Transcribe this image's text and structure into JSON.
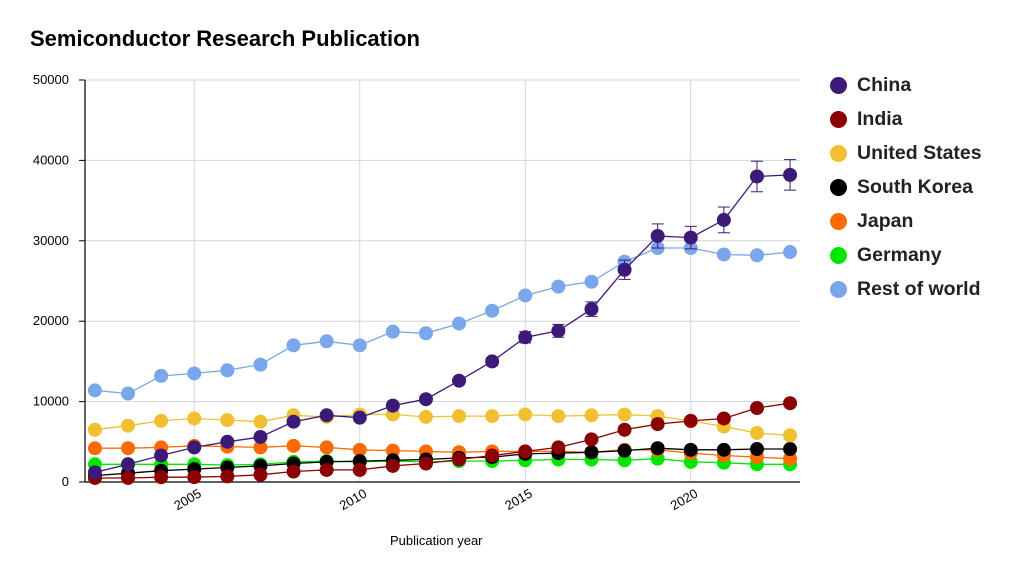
{
  "chart_data": {
    "type": "line",
    "title": "Semiconductor Research Publication",
    "xlabel": "Publication year",
    "ylabel": "",
    "xlim": [
      2001.7,
      2023.3
    ],
    "ylim": [
      0,
      50000
    ],
    "x": [
      2002,
      2003,
      2004,
      2005,
      2006,
      2007,
      2008,
      2009,
      2010,
      2011,
      2012,
      2013,
      2014,
      2015,
      2016,
      2017,
      2018,
      2019,
      2020,
      2021,
      2022,
      2023
    ],
    "x_ticks": [
      2005,
      2010,
      2015,
      2020
    ],
    "y_ticks": [
      0,
      10000,
      20000,
      30000,
      40000,
      50000
    ],
    "grid": true,
    "legend_position": "right",
    "series": [
      {
        "name": "China",
        "color": "#3d1a78",
        "values": [
          1200,
          2200,
          3300,
          4300,
          5000,
          5600,
          7500,
          8300,
          8000,
          9500,
          10300,
          12600,
          15000,
          18000,
          18800,
          21500,
          26400,
          30600,
          30400,
          32600,
          38000,
          38200
        ],
        "errors": [
          0,
          0,
          0,
          0,
          0,
          0,
          0,
          0,
          0,
          0,
          0,
          0,
          500,
          700,
          800,
          900,
          1200,
          1500,
          1400,
          1600,
          1900,
          1900
        ]
      },
      {
        "name": "India",
        "color": "#8b0000",
        "values": [
          500,
          500,
          600,
          600,
          700,
          900,
          1300,
          1500,
          1500,
          2000,
          2300,
          2800,
          3300,
          3800,
          4300,
          5300,
          6500,
          7200,
          7600,
          7900,
          9200,
          9800
        ]
      },
      {
        "name": "United States",
        "color": "#f0c030",
        "values": [
          6500,
          7000,
          7600,
          7900,
          7700,
          7500,
          8300,
          8100,
          8400,
          8400,
          8100,
          8200,
          8200,
          8400,
          8200,
          8300,
          8400,
          8200,
          7600,
          6900,
          6100,
          5800
        ]
      },
      {
        "name": "South Korea",
        "color": "#000000",
        "values": [
          800,
          1100,
          1400,
          1600,
          1800,
          2000,
          2300,
          2500,
          2600,
          2700,
          2800,
          3000,
          3100,
          3500,
          3600,
          3700,
          3900,
          4200,
          4000,
          4000,
          4100,
          4100
        ]
      },
      {
        "name": "Japan",
        "color": "#ff6a00",
        "values": [
          4200,
          4200,
          4300,
          4500,
          4400,
          4300,
          4500,
          4300,
          4000,
          3900,
          3800,
          3700,
          3800,
          3800,
          3800,
          3700,
          4000,
          4000,
          3600,
          3300,
          3100,
          2900
        ]
      },
      {
        "name": "Germany",
        "color": "#00e600",
        "values": [
          2200,
          2200,
          2200,
          2200,
          2100,
          2200,
          2500,
          2600,
          2500,
          2600,
          2500,
          2600,
          2600,
          2700,
          2800,
          2800,
          2700,
          2900,
          2500,
          2400,
          2200,
          2200
        ]
      },
      {
        "name": "Rest of world",
        "color": "#7aa6ec",
        "values": [
          11400,
          11000,
          13200,
          13500,
          13900,
          14600,
          17000,
          17500,
          17000,
          18700,
          18500,
          19700,
          21300,
          23200,
          24300,
          24900,
          27400,
          29100,
          29100,
          28300,
          28200,
          28600
        ]
      }
    ]
  }
}
